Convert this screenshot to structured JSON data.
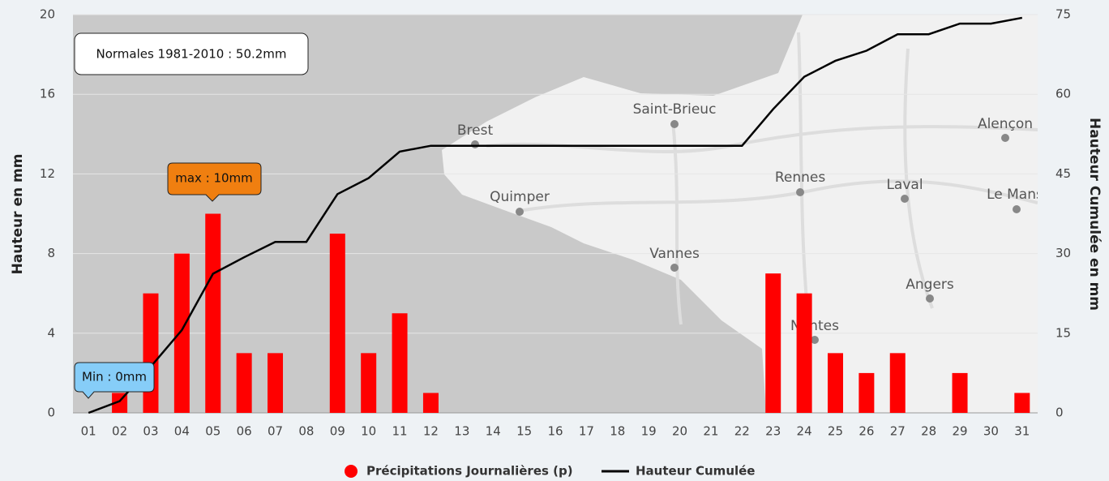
{
  "chart_data": {
    "type": "bar",
    "y_label": "Hauteur en mm",
    "y2_label": "Hauteur Cumulée en mm",
    "categories": [
      "01",
      "02",
      "03",
      "04",
      "05",
      "06",
      "07",
      "08",
      "09",
      "10",
      "11",
      "12",
      "13",
      "14",
      "15",
      "16",
      "17",
      "18",
      "19",
      "20",
      "21",
      "22",
      "23",
      "24",
      "25",
      "26",
      "27",
      "28",
      "29",
      "30",
      "31"
    ],
    "series": [
      {
        "name": "Précipitations Journalières (p)",
        "color": "#ff0000",
        "type": "bar",
        "values": [
          0,
          1,
          6,
          8,
          10,
          3,
          3,
          0,
          9,
          3,
          5,
          1,
          0,
          0,
          0,
          0,
          0,
          0,
          0,
          0,
          0,
          0,
          7,
          6,
          3,
          2,
          3,
          0,
          2,
          0,
          1
        ]
      },
      {
        "name": "Hauteur Cumulée",
        "color": "#000000",
        "type": "line",
        "axis": "y2",
        "values": [
          0,
          2.2,
          8.7,
          15.6,
          26.2,
          29.3,
          32.2,
          32.2,
          41.2,
          44.2,
          49.2,
          50.3,
          50.3,
          50.3,
          50.3,
          50.3,
          50.3,
          50.3,
          50.3,
          50.3,
          50.3,
          50.3,
          57.2,
          63.3,
          66.3,
          68.2,
          71.3,
          71.3,
          73.3,
          73.3,
          74.4
        ]
      }
    ],
    "ylim": [
      0,
      20
    ],
    "yticks": [
      0,
      4,
      8,
      12,
      16,
      20
    ],
    "y2lim": [
      0,
      75
    ],
    "y2ticks": [
      0,
      15,
      30,
      45,
      60,
      75
    ],
    "grid": true,
    "annotations": {
      "normal": "Normales 1981-2010 : 50.2mm",
      "max": "max : 10mm",
      "min": "Min : 0mm"
    }
  },
  "map": {
    "labels": [
      "Brest",
      "Saint-Brieuc",
      "Quimper",
      "Rennes",
      "Laval",
      "Alençon",
      "Le Mans",
      "Vannes",
      "Angers",
      "Nantes"
    ]
  }
}
